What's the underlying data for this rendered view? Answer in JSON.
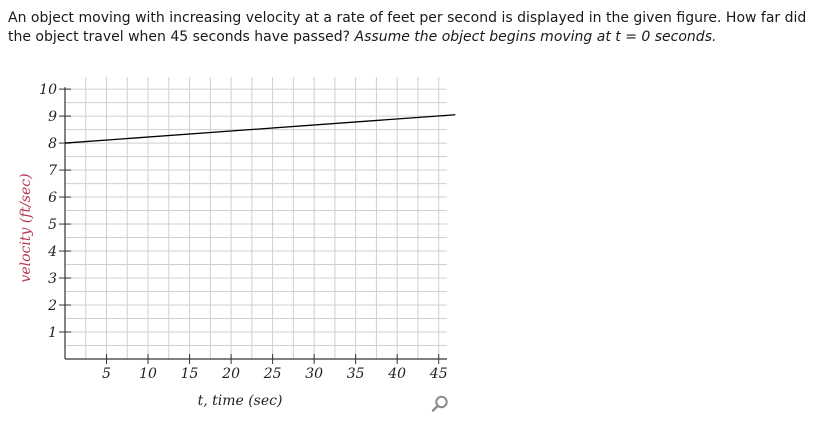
{
  "question": {
    "text_main": "An object moving with increasing velocity at a rate of feet per second is displayed in the given figure. How far did the object travel when 45 seconds have passed?",
    "text_assume": "Assume the object begins moving at t = 0 seconds."
  },
  "zoom": {
    "icon": "magnifier-icon",
    "color": "#8a8a8a"
  },
  "chart_data": {
    "type": "line",
    "xlabel": "t, time (sec)",
    "ylabel": "velocity (ft/sec)",
    "xlim": [
      0,
      46
    ],
    "ylim": [
      0,
      10.3
    ],
    "x_ticks": [
      5,
      10,
      15,
      20,
      25,
      30,
      35,
      40,
      45
    ],
    "y_ticks": [
      1,
      2,
      3,
      4,
      5,
      6,
      7,
      8,
      9,
      10
    ],
    "grid": true,
    "series": [
      {
        "x": [
          0,
          47
        ],
        "y": [
          8,
          9.05
        ],
        "color": "#000000"
      }
    ]
  }
}
